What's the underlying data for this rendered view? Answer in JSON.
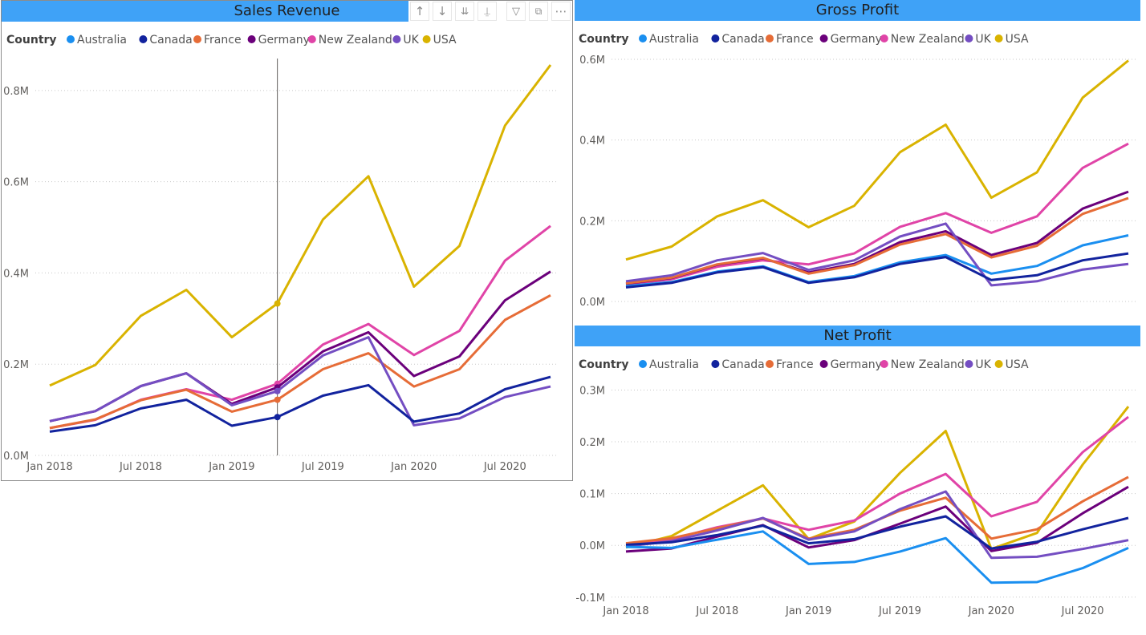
{
  "panels": {
    "sales": {
      "title": "Sales Revenue"
    },
    "gross": {
      "title": "Gross Profit"
    },
    "net": {
      "title": "Net Profit"
    }
  },
  "toolbar": {
    "drill_up_icon": "arrow-up-icon",
    "drill_down_icon": "arrow-down-icon",
    "expand_all_icon": "double-arrow-down-icon",
    "expand_level_icon": "hierarchy-icon",
    "filter_icon": "funnel-icon",
    "focus_icon": "focus-mode-icon",
    "more_icon": "ellipsis-icon"
  },
  "legend": {
    "title": "Country",
    "entries": [
      "Australia",
      "Canada",
      "France",
      "Germany",
      "New Zealand",
      "UK",
      "USA"
    ]
  },
  "colors": {
    "Australia": "#1a8ff0",
    "Canada": "#12239e",
    "France": "#e66c37",
    "Germany": "#6b007b",
    "New Zealand": "#e044a7",
    "UK": "#744ec2",
    "USA": "#d9b300"
  },
  "chart_data": [
    {
      "id": "sales",
      "type": "line",
      "title": "Sales Revenue",
      "x": [
        "Jan 2018",
        "Apr 2018",
        "Jul 2018",
        "Oct 2018",
        "Jan 2019",
        "Apr 2019",
        "Jul 2019",
        "Oct 2019",
        "Jan 2020",
        "Apr 2020",
        "Jul 2020",
        "Oct 2020"
      ],
      "xtick_labels": [
        "Jan 2018",
        "Jul 2018",
        "Jan 2019",
        "Jul 2019",
        "Jan 2020",
        "Jul 2020"
      ],
      "ylim": [
        0,
        0.87
      ],
      "yticks": [
        0,
        0.2,
        0.4,
        0.6,
        0.8
      ],
      "ytick_labels": [
        "0.0M",
        "0.2M",
        "0.4M",
        "0.6M",
        "0.8M"
      ],
      "hover_index": 5,
      "series": [
        {
          "name": "USA",
          "values": [
            0.153,
            0.198,
            0.306,
            0.363,
            0.259,
            0.333,
            0.517,
            0.612,
            0.37,
            0.459,
            0.723,
            0.856
          ]
        },
        {
          "name": "New Zealand",
          "values": [
            0.06,
            0.078,
            0.122,
            0.145,
            0.122,
            0.157,
            0.243,
            0.288,
            0.22,
            0.273,
            0.427,
            0.503
          ]
        },
        {
          "name": "Germany",
          "values": [
            0.075,
            0.097,
            0.152,
            0.18,
            0.113,
            0.149,
            0.228,
            0.27,
            0.174,
            0.217,
            0.34,
            0.403
          ]
        },
        {
          "name": "France",
          "values": [
            0.06,
            0.079,
            0.121,
            0.144,
            0.096,
            0.122,
            0.189,
            0.224,
            0.151,
            0.189,
            0.297,
            0.351
          ]
        },
        {
          "name": "UK",
          "values": [
            0.075,
            0.097,
            0.152,
            0.18,
            0.11,
            0.141,
            0.219,
            0.259,
            0.066,
            0.081,
            0.128,
            0.151
          ]
        },
        {
          "name": "Canada",
          "values": [
            0.052,
            0.066,
            0.103,
            0.122,
            0.065,
            0.084,
            0.131,
            0.154,
            0.074,
            0.092,
            0.145,
            0.172
          ]
        }
      ]
    },
    {
      "id": "gross",
      "type": "line",
      "title": "Gross Profit",
      "x": [
        "Jan 2018",
        "Apr 2018",
        "Jul 2018",
        "Oct 2018",
        "Jan 2019",
        "Apr 2019",
        "Jul 2019",
        "Oct 2019",
        "Jan 2020",
        "Apr 2020",
        "Jul 2020",
        "Oct 2020"
      ],
      "xtick_labels": [],
      "ylim": [
        0,
        0.6
      ],
      "yticks": [
        0,
        0.2,
        0.4,
        0.6
      ],
      "ytick_labels": [
        "0.0M",
        "0.2M",
        "0.4M",
        "0.6M"
      ],
      "series": [
        {
          "name": "USA",
          "values": [
            0.104,
            0.136,
            0.211,
            0.251,
            0.184,
            0.237,
            0.37,
            0.438,
            0.257,
            0.32,
            0.505,
            0.597
          ]
        },
        {
          "name": "New Zealand",
          "values": [
            0.042,
            0.055,
            0.086,
            0.102,
            0.092,
            0.119,
            0.185,
            0.219,
            0.17,
            0.211,
            0.331,
            0.391
          ]
        },
        {
          "name": "Germany",
          "values": [
            0.044,
            0.058,
            0.091,
            0.107,
            0.072,
            0.093,
            0.147,
            0.174,
            0.115,
            0.145,
            0.23,
            0.272
          ]
        },
        {
          "name": "France",
          "values": [
            0.045,
            0.059,
            0.092,
            0.108,
            0.069,
            0.09,
            0.141,
            0.167,
            0.109,
            0.138,
            0.217,
            0.256
          ]
        },
        {
          "name": "Australia",
          "values": [
            0.038,
            0.048,
            0.074,
            0.087,
            0.048,
            0.063,
            0.097,
            0.115,
            0.069,
            0.088,
            0.139,
            0.164
          ]
        },
        {
          "name": "UK",
          "values": [
            0.05,
            0.065,
            0.102,
            0.12,
            0.078,
            0.102,
            0.161,
            0.193,
            0.04,
            0.05,
            0.079,
            0.093
          ]
        },
        {
          "name": "Canada",
          "values": [
            0.035,
            0.046,
            0.072,
            0.085,
            0.046,
            0.06,
            0.093,
            0.11,
            0.053,
            0.065,
            0.102,
            0.119
          ]
        }
      ]
    },
    {
      "id": "net",
      "type": "line",
      "title": "Net Profit",
      "x": [
        "Jan 2018",
        "Apr 2018",
        "Jul 2018",
        "Oct 2018",
        "Jan 2019",
        "Apr 2019",
        "Jul 2019",
        "Oct 2019",
        "Jan 2020",
        "Apr 2020",
        "Jul 2020",
        "Oct 2020"
      ],
      "xtick_labels": [
        "Jan 2018",
        "Jul 2018",
        "Jan 2019",
        "Jul 2019",
        "Jan 2020",
        "Jul 2020"
      ],
      "ylim": [
        -0.105,
        0.31
      ],
      "yticks": [
        -0.1,
        0,
        0.1,
        0.2,
        0.3
      ],
      "ytick_labels": [
        "-0.1M",
        "0.0M",
        "0.1M",
        "0.2M",
        "0.3M"
      ],
      "series": [
        {
          "name": "USA",
          "values": [
            -0.004,
            0.018,
            0.067,
            0.116,
            0.012,
            0.046,
            0.14,
            0.221,
            -0.007,
            0.024,
            0.156,
            0.268
          ]
        },
        {
          "name": "New Zealand",
          "values": [
            0.001,
            0.012,
            0.035,
            0.052,
            0.03,
            0.048,
            0.1,
            0.138,
            0.056,
            0.084,
            0.18,
            0.248
          ]
        },
        {
          "name": "France",
          "values": [
            0.004,
            0.014,
            0.033,
            0.052,
            0.013,
            0.03,
            0.067,
            0.092,
            0.013,
            0.031,
            0.085,
            0.132
          ]
        },
        {
          "name": "Germany",
          "values": [
            -0.012,
            -0.006,
            0.017,
            0.039,
            -0.004,
            0.01,
            0.042,
            0.075,
            -0.011,
            0.005,
            0.062,
            0.113
          ]
        },
        {
          "name": "UK",
          "values": [
            -0.002,
            0.008,
            0.029,
            0.053,
            0.011,
            0.027,
            0.07,
            0.104,
            -0.024,
            -0.022,
            -0.007,
            0.01
          ]
        },
        {
          "name": "Canada",
          "values": [
            0.001,
            0.006,
            0.02,
            0.038,
            0.004,
            0.012,
            0.036,
            0.056,
            -0.006,
            0.007,
            0.031,
            0.053
          ]
        },
        {
          "name": "Australia",
          "values": [
            -0.003,
            -0.005,
            0.011,
            0.027,
            -0.036,
            -0.032,
            -0.012,
            0.014,
            -0.072,
            -0.071,
            -0.044,
            -0.005
          ]
        }
      ]
    }
  ]
}
